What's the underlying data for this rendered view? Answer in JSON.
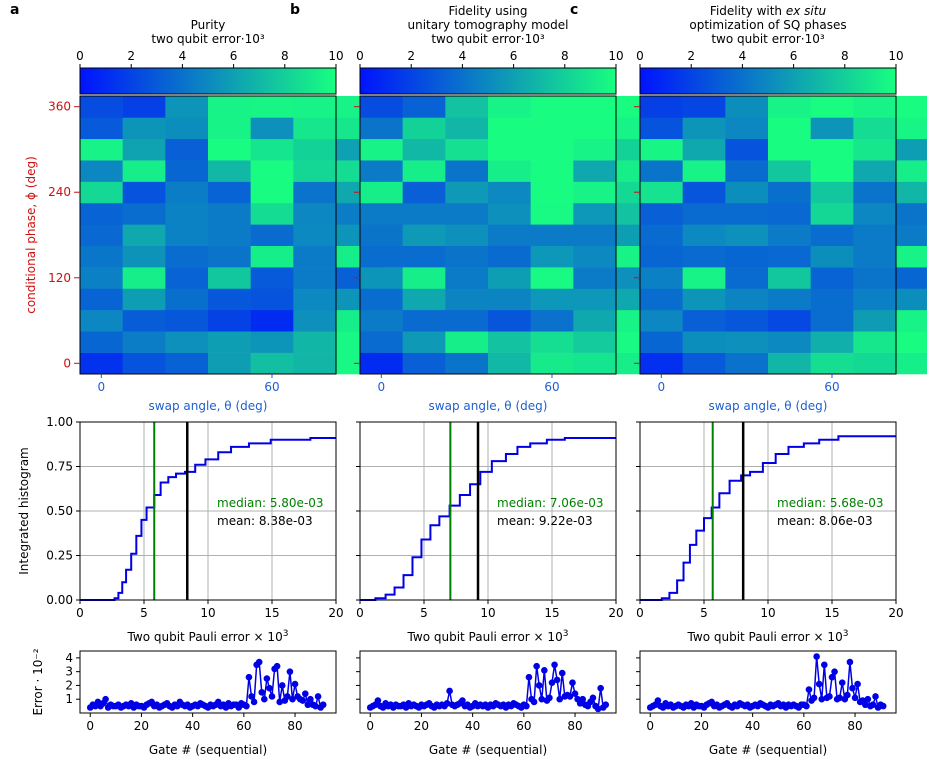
{
  "colors": {
    "low": "#0013ff",
    "high": "#18ff80",
    "axis_red": "#cc1010",
    "axis_blue": "#1f5fcf",
    "cdf": "#0000e6",
    "median": "#008000",
    "mean": "#000000",
    "grid": "#b0b0b0"
  },
  "shared": {
    "colorbar_ticks": [
      "0",
      "2",
      "4",
      "6",
      "8",
      "10"
    ],
    "heat_ylabel": "conditional phase, ϕ (deg)",
    "heat_xlabel": "swap angle, θ (deg)",
    "heat_yticks": [
      "0",
      "120",
      "240",
      "360"
    ],
    "heat_xticks": [
      "0",
      "60"
    ],
    "cdf_ylabel": "Integrated histogram",
    "cdf_xlabel_main": "Two qubit Pauli error × 10",
    "cdf_xlabel_sup": "3",
    "cdf_yticks": [
      "0.00",
      "0.25",
      "0.50",
      "0.75",
      "1.00"
    ],
    "cdf_xticks": [
      "0",
      "5",
      "10",
      "15",
      "20"
    ],
    "seq_ylabel": "Error · 10⁻²",
    "seq_xlabel": "Gate # (sequential)",
    "seq_yticks": [
      "1",
      "2",
      "3",
      "4"
    ],
    "seq_xticks": [
      "0",
      "20",
      "40",
      "60",
      "80"
    ]
  },
  "panels": [
    {
      "letter": "a",
      "title_lines": [
        "Purity",
        "two qubit error·10³"
      ],
      "median_label": "median: 5.80e-03",
      "mean_label": "mean: 8.38e-03"
    },
    {
      "letter": "b",
      "title_lines": [
        "Fidelity using",
        "unitary tomography model",
        "two qubit error·10³"
      ],
      "median_label": "median: 7.06e-03",
      "mean_label": "mean: 9.22e-03"
    },
    {
      "letter": "c",
      "title_lines": [
        "Fidelity with ex situ",
        "optimization of SQ phases",
        "two qubit error·10³"
      ],
      "median_label": "median: 5.68e-03",
      "mean_label": "mean: 8.06e-03"
    }
  ],
  "chart_data": [
    {
      "type": "heatmap",
      "panel": "a",
      "title": "Purity two qubit error·10³",
      "xlabel": "swap angle, θ (deg)",
      "ylabel": "conditional phase, ϕ (deg)",
      "color_range": [
        0,
        10
      ],
      "xlim": [
        -7.5,
        82.5
      ],
      "ylim": [
        -15,
        375
      ],
      "theta_step_deg": 15,
      "phi_step_deg": 30,
      "values": [
        [
          1.3,
          2.7,
          3.3,
          5.9,
          7.3,
          6.9,
          9.7
        ],
        [
          3.5,
          4.5,
          5.3,
          5.9,
          5.5,
          6.9,
          9.7
        ],
        [
          4.9,
          3.1,
          2.9,
          2.0,
          1.0,
          5.3,
          9.3
        ],
        [
          3.4,
          5.9,
          3.9,
          2.9,
          2.7,
          5.0,
          5.5
        ],
        [
          4.6,
          9.3,
          3.4,
          7.6,
          3.0,
          4.4,
          3.2
        ],
        [
          4.2,
          5.4,
          3.8,
          4.1,
          9.3,
          4.4,
          9.3
        ],
        [
          3.6,
          6.3,
          4.7,
          4.4,
          3.7,
          5.0,
          5.5
        ],
        [
          3.4,
          3.8,
          4.7,
          4.4,
          8.5,
          4.9,
          4.5
        ],
        [
          8.4,
          2.7,
          4.5,
          3.4,
          9.9,
          4.1,
          6.3
        ],
        [
          4.9,
          9.3,
          3.5,
          7.0,
          9.9,
          8.3,
          8.5
        ],
        [
          9.5,
          6.1,
          3.2,
          9.9,
          8.9,
          8.1,
          6.0
        ],
        [
          3.0,
          5.5,
          5.2,
          9.5,
          5.3,
          9.0,
          9.0
        ],
        [
          2.4,
          1.9,
          5.5,
          9.5,
          9.6,
          9.5,
          9.5
        ]
      ]
    },
    {
      "type": "heatmap",
      "panel": "b",
      "title": "Fidelity using unitary tomography model two qubit error·10³",
      "xlabel": "swap angle, θ (deg)",
      "ylabel": "conditional phase, ϕ (deg)",
      "color_range": [
        0,
        10
      ],
      "xlim": [
        -7.5,
        82.5
      ],
      "ylim": [
        -15,
        375
      ],
      "theta_step_deg": 15,
      "phi_step_deg": 30,
      "values": [
        [
          1.0,
          3.2,
          4.1,
          7.0,
          9.1,
          8.9,
          9.3
        ],
        [
          3.7,
          5.7,
          9.3,
          7.4,
          8.6,
          7.8,
          9.8
        ],
        [
          4.4,
          3.7,
          3.7,
          2.8,
          4.0,
          6.3,
          9.5
        ],
        [
          3.8,
          6.3,
          4.8,
          4.8,
          5.6,
          5.6,
          6.3
        ],
        [
          5.5,
          9.3,
          4.4,
          5.9,
          9.8,
          4.4,
          5.3
        ],
        [
          3.8,
          3.8,
          4.1,
          3.7,
          5.6,
          5.0,
          9.5
        ],
        [
          4.1,
          5.7,
          5.3,
          4.4,
          4.4,
          4.4,
          5.9
        ],
        [
          4.4,
          4.4,
          4.4,
          5.3,
          9.8,
          5.6,
          7.4
        ],
        [
          9.3,
          3.2,
          5.7,
          5.0,
          9.9,
          9.5,
          8.4
        ],
        [
          4.4,
          9.3,
          4.1,
          9.3,
          9.9,
          6.3,
          9.3
        ],
        [
          9.5,
          7.0,
          8.7,
          9.9,
          9.9,
          9.5,
          8.1
        ],
        [
          4.1,
          8.1,
          6.9,
          9.9,
          9.9,
          9.9,
          9.5
        ],
        [
          2.4,
          3.3,
          7.4,
          9.5,
          9.9,
          9.9,
          9.9
        ]
      ]
    },
    {
      "type": "heatmap",
      "panel": "c",
      "title": "Fidelity with ex situ optimization of SQ phases two qubit error·10³",
      "xlabel": "swap angle, θ (deg)",
      "ylabel": "conditional phase, ϕ (deg)",
      "color_range": [
        0,
        10
      ],
      "xlim": [
        -7.5,
        82.5
      ],
      "ylim": [
        -15,
        375
      ],
      "theta_step_deg": 15,
      "phi_step_deg": 30,
      "values": [
        [
          1.2,
          3.0,
          4.0,
          6.9,
          8.6,
          8.4,
          9.3
        ],
        [
          3.5,
          5.2,
          5.3,
          5.0,
          6.6,
          9.0,
          9.9
        ],
        [
          4.9,
          3.2,
          2.9,
          2.3,
          3.8,
          5.8,
          9.5
        ],
        [
          3.8,
          5.5,
          4.8,
          4.4,
          3.8,
          4.6,
          5.2
        ],
        [
          4.6,
          9.5,
          3.7,
          7.6,
          3.4,
          4.1,
          3.5
        ],
        [
          3.5,
          3.7,
          3.5,
          3.6,
          5.2,
          4.4,
          9.5
        ],
        [
          3.7,
          5.0,
          5.3,
          4.4,
          3.8,
          4.4,
          4.4
        ],
        [
          3.2,
          3.7,
          3.7,
          3.6,
          8.3,
          4.9,
          4.1
        ],
        [
          8.8,
          2.8,
          5.2,
          3.9,
          7.6,
          4.1,
          6.9
        ],
        [
          4.1,
          9.5,
          3.7,
          7.6,
          9.9,
          6.3,
          9.3
        ],
        [
          9.6,
          6.3,
          2.7,
          9.9,
          9.9,
          9.0,
          5.9
        ],
        [
          2.7,
          5.5,
          4.9,
          9.9,
          5.5,
          8.5,
          9.6
        ],
        [
          1.9,
          2.1,
          5.2,
          9.5,
          9.9,
          9.5,
          9.9
        ]
      ]
    },
    {
      "type": "line",
      "panel": "a",
      "title": "Integrated histogram vs two qubit Pauli error",
      "xlabel": "Two qubit Pauli error × 10³",
      "ylabel": "Integrated histogram",
      "xlim": [
        0,
        20
      ],
      "ylim": [
        0,
        1
      ],
      "grid": true,
      "x": [
        0,
        2.7,
        3.0,
        3.3,
        3.6,
        4.0,
        4.4,
        4.8,
        5.2,
        5.8,
        6.3,
        6.9,
        7.5,
        8.2,
        9.0,
        9.8,
        10.8,
        11.8,
        13.2,
        14.9,
        16.2,
        18.0,
        20.0
      ],
      "y": [
        0,
        0.01,
        0.04,
        0.1,
        0.17,
        0.26,
        0.36,
        0.45,
        0.52,
        0.59,
        0.66,
        0.69,
        0.71,
        0.72,
        0.76,
        0.79,
        0.83,
        0.86,
        0.88,
        0.9,
        0.9,
        0.91,
        0.91
      ],
      "median": 5.8,
      "mean": 8.38
    },
    {
      "type": "line",
      "panel": "b",
      "title": "Integrated histogram vs two qubit Pauli error",
      "xlabel": "Two qubit Pauli error × 10³",
      "ylabel": "Integrated histogram",
      "xlim": [
        0,
        20
      ],
      "ylim": [
        0,
        1
      ],
      "grid": true,
      "x": [
        0,
        1.2,
        2.0,
        2.7,
        3.4,
        4.1,
        4.8,
        5.5,
        6.2,
        7.0,
        7.8,
        8.6,
        9.4,
        10.3,
        11.4,
        12.3,
        13.3,
        14.6,
        16.0,
        18.0,
        20.0
      ],
      "y": [
        0,
        0.01,
        0.03,
        0.07,
        0.14,
        0.24,
        0.34,
        0.42,
        0.47,
        0.53,
        0.59,
        0.65,
        0.72,
        0.78,
        0.82,
        0.86,
        0.88,
        0.9,
        0.91,
        0.91,
        0.91
      ],
      "median": 7.06,
      "mean": 9.22
    },
    {
      "type": "line",
      "panel": "c",
      "title": "Integrated histogram vs two qubit Pauli error",
      "xlabel": "Two qubit Pauli error × 10³",
      "ylabel": "Integrated histogram",
      "xlim": [
        0,
        20
      ],
      "ylim": [
        0,
        1
      ],
      "grid": true,
      "x": [
        0,
        1.7,
        2.3,
        2.9,
        3.4,
        3.9,
        4.4,
        5.0,
        5.6,
        6.2,
        7.0,
        7.9,
        8.6,
        9.6,
        10.6,
        11.6,
        12.8,
        14.0,
        15.5,
        17.5,
        20.0
      ],
      "y": [
        0,
        0.01,
        0.04,
        0.11,
        0.21,
        0.31,
        0.39,
        0.46,
        0.52,
        0.6,
        0.67,
        0.7,
        0.72,
        0.77,
        0.82,
        0.86,
        0.88,
        0.9,
        0.92,
        0.92,
        0.92
      ],
      "median": 5.68,
      "mean": 8.06
    },
    {
      "type": "scatter",
      "panel": "a",
      "connected": true,
      "xlabel": "Gate # (sequential)",
      "ylabel": "Error · 10⁻²",
      "xlim": [
        -4,
        96
      ],
      "ylim": [
        0,
        4.5
      ],
      "values": [
        0.4,
        0.6,
        0.5,
        0.8,
        0.5,
        0.7,
        1.0,
        0.4,
        0.6,
        0.5,
        0.5,
        0.6,
        0.4,
        0.5,
        0.6,
        0.5,
        0.7,
        0.4,
        0.6,
        0.5,
        0.5,
        0.4,
        0.6,
        0.7,
        0.8,
        0.5,
        0.6,
        0.4,
        0.5,
        0.6,
        0.7,
        0.5,
        0.4,
        0.6,
        0.5,
        0.8,
        0.6,
        0.5,
        0.6,
        0.4,
        0.5,
        0.6,
        0.5,
        0.7,
        0.6,
        0.5,
        0.4,
        0.6,
        0.5,
        0.6,
        0.8,
        0.5,
        0.6,
        0.4,
        0.7,
        0.5,
        0.6,
        0.6,
        0.4,
        0.7,
        0.6,
        0.5,
        2.6,
        1.2,
        0.8,
        3.5,
        3.7,
        1.5,
        1.0,
        2.5,
        1.8,
        1.2,
        3.2,
        3.4,
        0.8,
        2.0,
        0.9,
        1.2,
        3.0,
        1.0,
        2.1,
        1.2,
        1.0,
        0.9,
        1.4,
        0.6,
        1.0,
        0.6,
        0.5,
        1.2,
        0.4,
        0.6
      ]
    },
    {
      "type": "scatter",
      "panel": "b",
      "connected": true,
      "xlabel": "Gate # (sequential)",
      "ylabel": "Error · 10⁻²",
      "xlim": [
        -4,
        96
      ],
      "ylim": [
        0,
        4.5
      ],
      "values": [
        0.4,
        0.5,
        0.6,
        0.9,
        0.5,
        0.4,
        0.7,
        0.5,
        0.6,
        0.4,
        0.6,
        0.5,
        0.5,
        0.6,
        0.4,
        0.7,
        0.5,
        0.6,
        0.5,
        0.4,
        0.6,
        0.5,
        0.6,
        0.7,
        0.5,
        0.4,
        0.6,
        0.5,
        0.6,
        0.5,
        0.7,
        1.6,
        0.6,
        0.5,
        0.6,
        0.7,
        0.9,
        0.5,
        0.6,
        0.4,
        0.5,
        0.7,
        0.5,
        0.6,
        0.5,
        0.6,
        0.4,
        0.6,
        0.5,
        0.7,
        0.6,
        0.5,
        0.6,
        0.4,
        0.6,
        0.5,
        0.7,
        0.6,
        0.5,
        0.4,
        0.6,
        0.5,
        2.6,
        1.0,
        0.8,
        3.4,
        2.0,
        1.0,
        3.1,
        0.9,
        1.1,
        2.2,
        3.5,
        2.4,
        1.0,
        2.9,
        1.2,
        1.3,
        1.2,
        2.2,
        1.4,
        1.0,
        0.7,
        1.0,
        0.6,
        0.5,
        0.8,
        1.1,
        0.5,
        0.3,
        1.8,
        0.4,
        0.6
      ]
    },
    {
      "type": "scatter",
      "panel": "c",
      "connected": true,
      "xlabel": "Gate # (sequential)",
      "ylabel": "Error · 10⁻²",
      "xlim": [
        -4,
        96
      ],
      "ylim": [
        0,
        4.5
      ],
      "values": [
        0.4,
        0.5,
        0.6,
        0.9,
        0.5,
        0.4,
        0.7,
        0.5,
        0.6,
        0.4,
        0.5,
        0.6,
        0.5,
        0.4,
        0.6,
        0.5,
        0.7,
        0.4,
        0.6,
        0.5,
        0.5,
        0.4,
        0.6,
        0.7,
        0.8,
        0.5,
        0.6,
        0.4,
        0.5,
        0.6,
        0.7,
        0.5,
        0.4,
        0.6,
        0.5,
        0.7,
        0.6,
        0.5,
        0.6,
        0.4,
        0.5,
        0.6,
        0.5,
        0.7,
        0.6,
        0.5,
        0.4,
        0.6,
        0.5,
        0.6,
        0.7,
        0.5,
        0.6,
        0.4,
        0.6,
        0.5,
        0.6,
        0.5,
        0.4,
        0.6,
        0.6,
        0.5,
        1.7,
        0.9,
        1.1,
        4.1,
        2.1,
        1.0,
        3.5,
        1.1,
        1.2,
        2.6,
        3.0,
        1.0,
        1.1,
        2.2,
        1.0,
        1.3,
        3.7,
        1.8,
        1.1,
        2.1,
        0.8,
        0.9,
        0.6,
        1.0,
        0.5,
        0.6,
        1.2,
        0.4,
        0.6,
        0.5
      ]
    }
  ]
}
